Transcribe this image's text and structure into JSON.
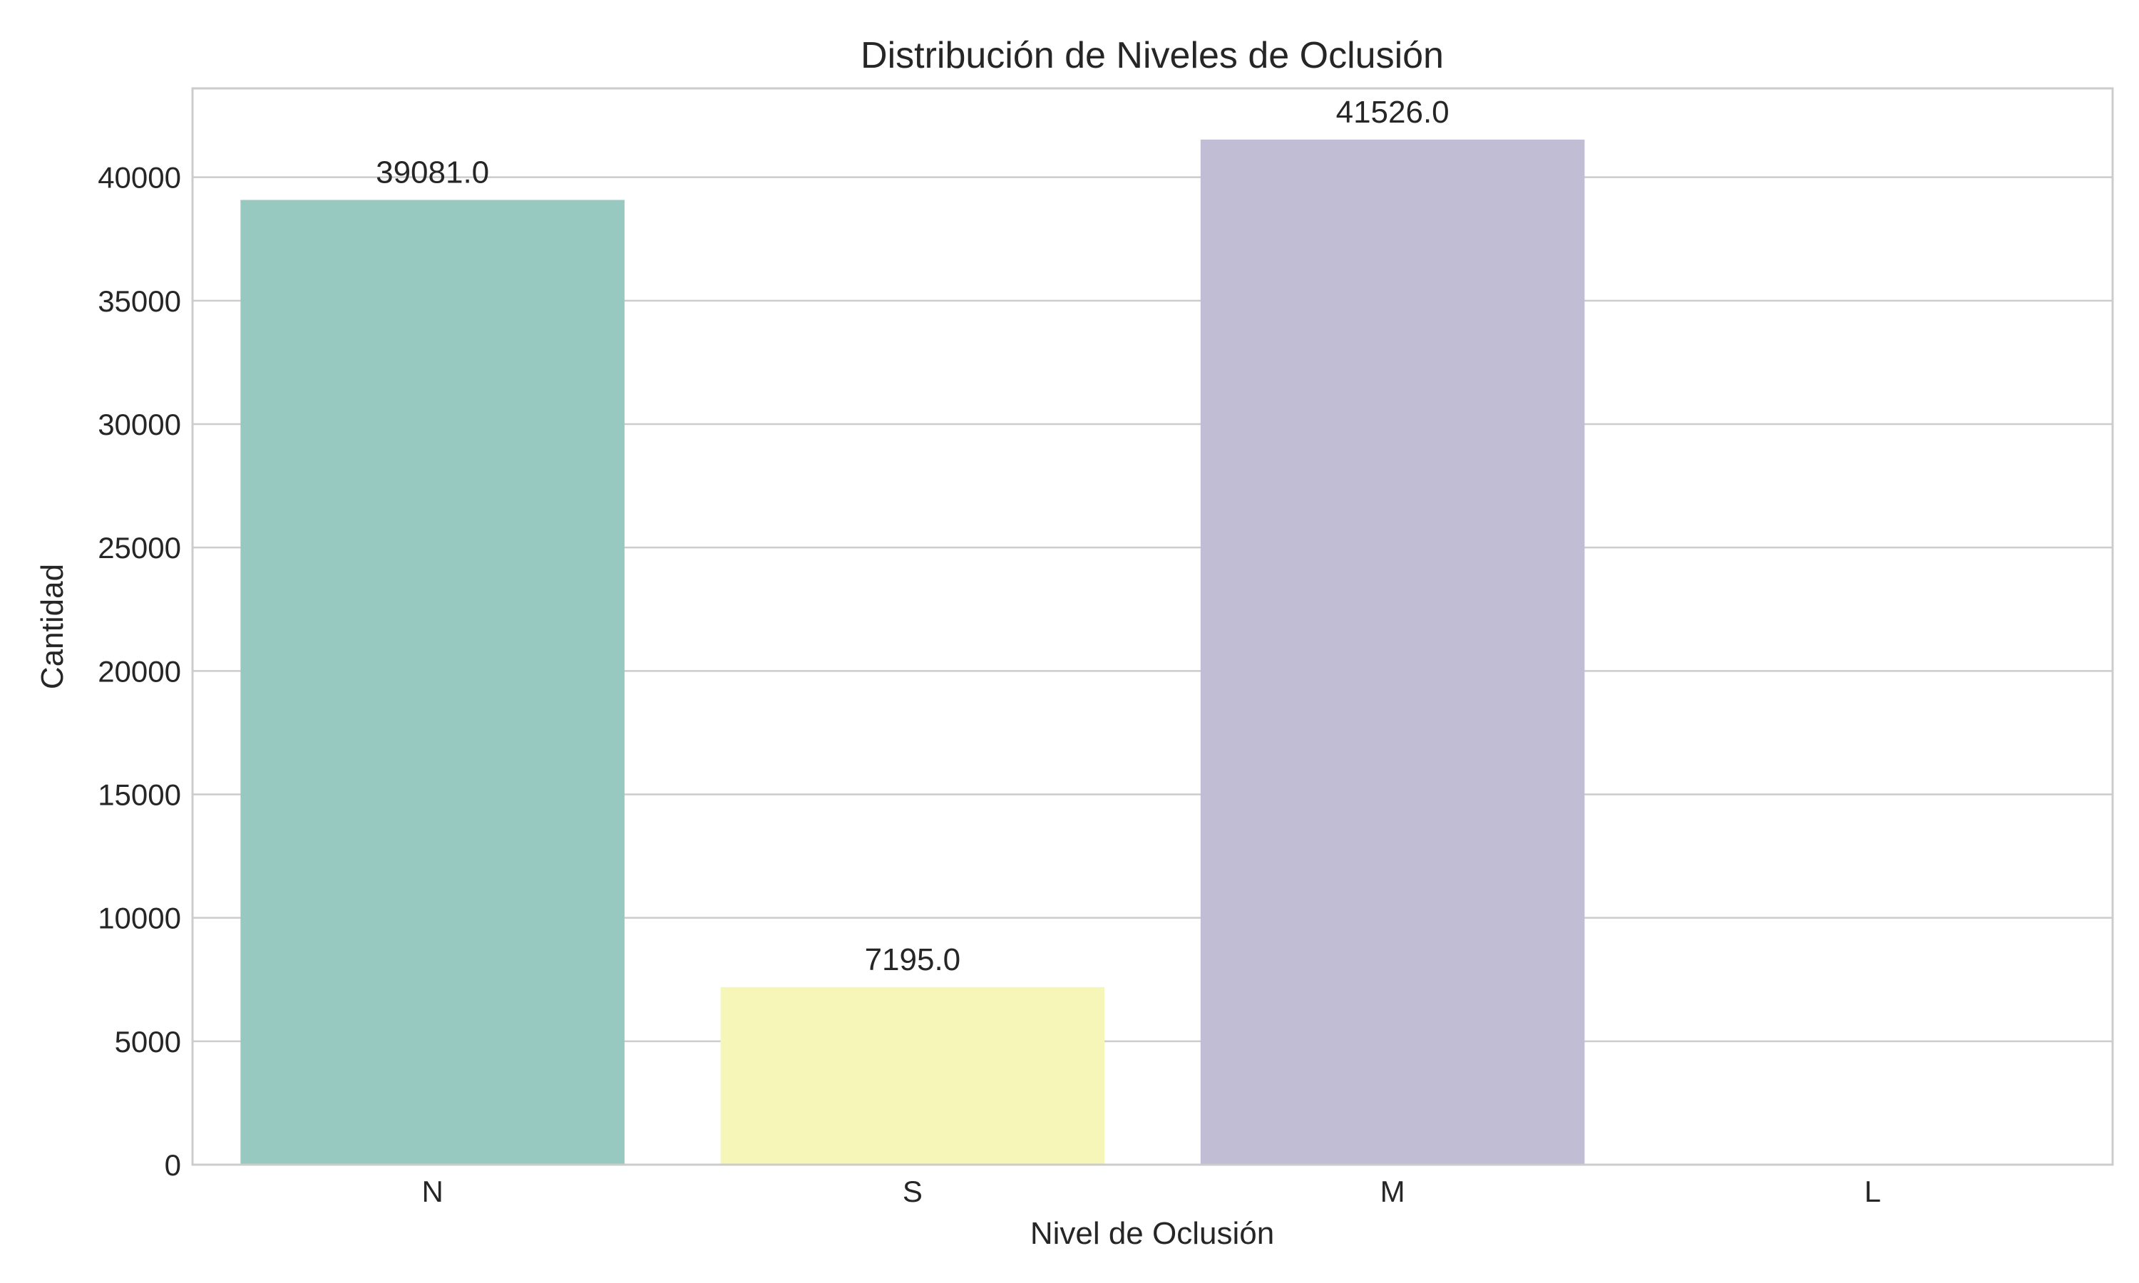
{
  "chart_data": {
    "type": "bar",
    "title": "Distribución de Niveles de Oclusión",
    "xlabel": "Nivel de Oclusión",
    "ylabel": "Cantidad",
    "categories": [
      "N",
      "S",
      "M",
      "L"
    ],
    "values": [
      39081,
      7195,
      41526,
      0
    ],
    "data_labels": [
      "39081.0",
      "7195.0",
      "41526.0",
      ""
    ],
    "colors": [
      "#97c9c1",
      "#f6f6b9",
      "#c1bdd5",
      "#f48b7f"
    ],
    "ylim": [
      0,
      43600
    ],
    "yticks": [
      0,
      5000,
      10000,
      15000,
      20000,
      25000,
      30000,
      35000,
      40000
    ],
    "ytick_labels": [
      "0",
      "5000",
      "10000",
      "15000",
      "20000",
      "25000",
      "30000",
      "35000",
      "40000"
    ],
    "grid": true,
    "grid_axis": "y",
    "legend": "none"
  }
}
